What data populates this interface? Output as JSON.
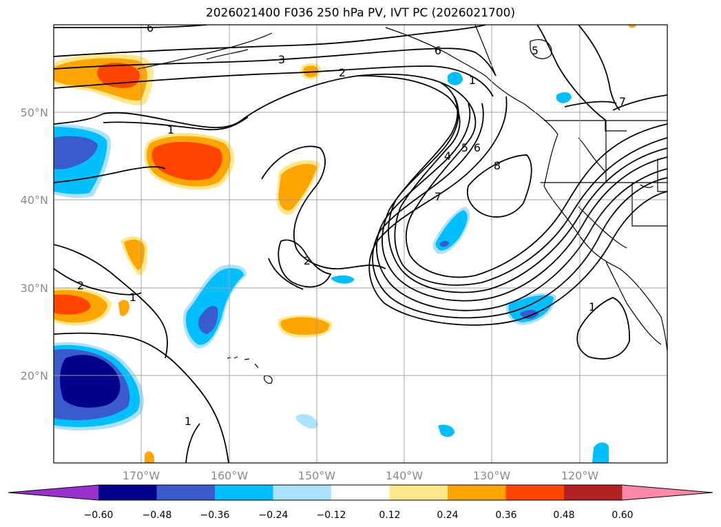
{
  "title": "2026021400 F036 250 hPa PV, IVT PC (2026021700)",
  "lat_labels": [
    "50°N",
    "40°N",
    "30°N",
    "20°N"
  ],
  "lon_labels": [
    "170°W",
    "160°W",
    "150°W",
    "140°W",
    "130°W",
    "120°W"
  ],
  "contour_labels": [
    "6",
    "3",
    "2",
    "6",
    "5",
    "1",
    "7",
    "4",
    "5",
    "6",
    "8",
    "7",
    "2",
    "2",
    "1",
    "1",
    "1",
    "1"
  ],
  "colorbar": {
    "ticks": [
      "−0.60",
      "−0.48",
      "−0.36",
      "−0.24",
      "−0.12",
      "0.12",
      "0.24",
      "0.36",
      "0.48",
      "0.60"
    ],
    "colors": [
      "#9932cc",
      "#00008b",
      "#3a5bcc",
      "#00bfff",
      "#ade2ff",
      "#ffffff",
      "#ffe88a",
      "#ffa500",
      "#ff4500",
      "#b22222",
      "#ff88aa"
    ]
  }
}
